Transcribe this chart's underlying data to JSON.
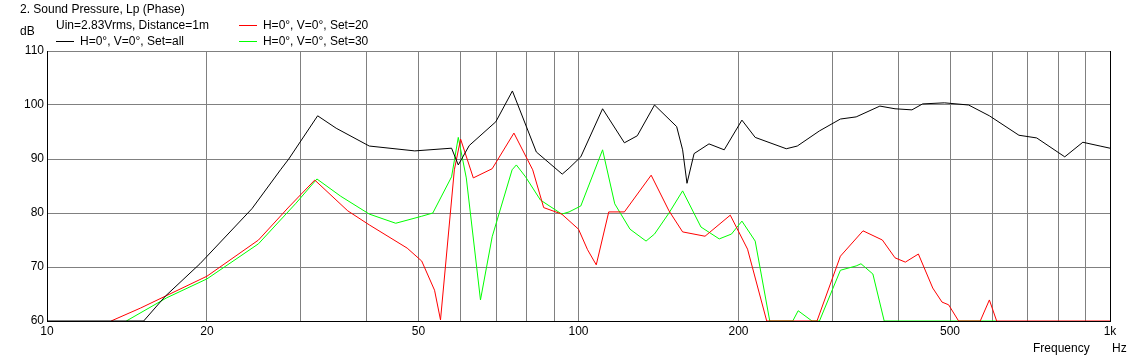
{
  "chart_data": {
    "type": "line",
    "title": "2. Sound Pressure, Lp (Phase)",
    "subtitle": "Uin=2.83Vrms, Distance=1m",
    "xlabel": "Frequency",
    "ylabel": "dB",
    "annotations": [
      "Hz"
    ],
    "log": "x",
    "grid": true,
    "legend": "top left",
    "marker": "none",
    "line_style": "solid",
    "xlim": [
      10,
      1000
    ],
    "ylim": [
      60,
      110
    ],
    "xticks": [
      10,
      20,
      {
        "value": 30,
        "label": null
      },
      {
        "value": 40,
        "label": null
      },
      50,
      {
        "value": 60,
        "label": null
      },
      {
        "value": 70,
        "label": null
      },
      {
        "value": 80,
        "label": null
      },
      {
        "value": 90,
        "label": null
      },
      100,
      200,
      {
        "value": 300,
        "label": null
      },
      {
        "value": 400,
        "label": null
      },
      500,
      {
        "value": 600,
        "label": null
      },
      {
        "value": 700,
        "label": null
      },
      {
        "value": 800,
        "label": null
      },
      {
        "value": 900,
        "label": null
      },
      {
        "value": 1000,
        "label": "1k"
      }
    ],
    "yticks": [
      60,
      70,
      80,
      90,
      100,
      110
    ],
    "series": [
      {
        "name": "H=0°, V=0°, Set=all",
        "color": "#000000",
        "x": [
          10,
          15.2,
          16.7,
          19.4,
          24.3,
          27.5,
          28.5,
          32.3,
          35,
          40.4,
          49.2,
          57.7,
          59.4,
          62.3,
          69.9,
          75.1,
          83.3,
          93.2,
          96,
          101,
          111,
          122,
          129,
          139,
          153,
          157,
          160,
          165,
          176,
          188,
          203,
          215,
          246,
          258,
          284,
          311,
          333,
          369,
          394,
          424,
          444,
          488,
          542,
          593,
          674,
          728,
          822,
          889,
          958,
          1000
        ],
        "values": [
          60,
          60,
          64.6,
          70.6,
          80.8,
          88,
          90,
          98,
          95.7,
          92.4,
          91.5,
          92,
          88.9,
          92.5,
          96.9,
          102.6,
          91.3,
          87.2,
          88.3,
          90.4,
          99.3,
          93,
          94.3,
          100,
          96,
          91.7,
          85.5,
          91,
          92.8,
          91.7,
          97.2,
          94,
          91.9,
          92.4,
          95.2,
          97.4,
          97.8,
          99.8,
          99.3,
          99.1,
          100.2,
          100.4,
          100,
          98,
          94.4,
          93.9,
          90.4,
          93.1,
          92.4,
          92
        ]
      },
      {
        "name": "H=0°, V=0°, Set=20",
        "color": "#ff0000",
        "x": [
          13.2,
          15,
          20,
          25,
          28.5,
          31.9,
          36.8,
          40.4,
          47.6,
          50.7,
          53.6,
          55,
          58.4,
          60,
          63.4,
          68.8,
          75.6,
          82,
          86,
          93,
          100,
          104,
          108,
          114,
          122,
          137,
          148,
          157,
          173,
          193,
          208,
          226,
          281,
          311,
          343,
          373,
          394,
          412,
          436,
          464,
          483,
          497,
          519,
          570,
          593,
          612,
          1000
        ],
        "values": [
          60,
          62.4,
          68.3,
          75,
          81.1,
          86.1,
          80.4,
          77.8,
          73.5,
          71.1,
          65.7,
          60.2,
          88,
          93.7,
          86.5,
          88.2,
          94.8,
          88,
          81,
          79.8,
          77,
          73.2,
          70.4,
          80.2,
          80.2,
          87,
          80.4,
          76.5,
          75.7,
          79.6,
          73.3,
          60,
          60,
          72,
          76.7,
          75,
          71.7,
          70.9,
          72.4,
          66.1,
          63.5,
          63,
          60,
          60,
          63.9,
          60,
          60
        ]
      },
      {
        "name": "H=0°, V=0°, Set=30",
        "color": "#00ff00",
        "x": [
          14.1,
          16.8,
          20,
          25,
          29.4,
          32.2,
          35.7,
          40.4,
          45.3,
          50.7,
          53.2,
          57.7,
          59.4,
          61.5,
          65.4,
          68.8,
          75,
          76.4,
          79.5,
          84.8,
          93,
          96,
          101,
          111,
          117,
          125,
          134,
          139,
          148,
          157,
          170,
          184,
          194,
          203,
          215,
          229,
          253,
          259,
          275,
          284,
          311,
          333,
          340,
          358,
          376,
          612
        ],
        "values": [
          60,
          64.3,
          67.8,
          74.3,
          81.8,
          86.3,
          83.1,
          79.8,
          78.1,
          79.4,
          80,
          86.7,
          94,
          86.5,
          63.9,
          75.6,
          88,
          88.9,
          86.7,
          82.4,
          79.8,
          80.2,
          81.3,
          91.7,
          81.7,
          77,
          74.8,
          76.1,
          80,
          84.1,
          77.4,
          75.2,
          76.1,
          78.5,
          74.8,
          60,
          60,
          61.9,
          60,
          60,
          69.4,
          70.2,
          70.6,
          68.7,
          60,
          60
        ]
      }
    ]
  }
}
